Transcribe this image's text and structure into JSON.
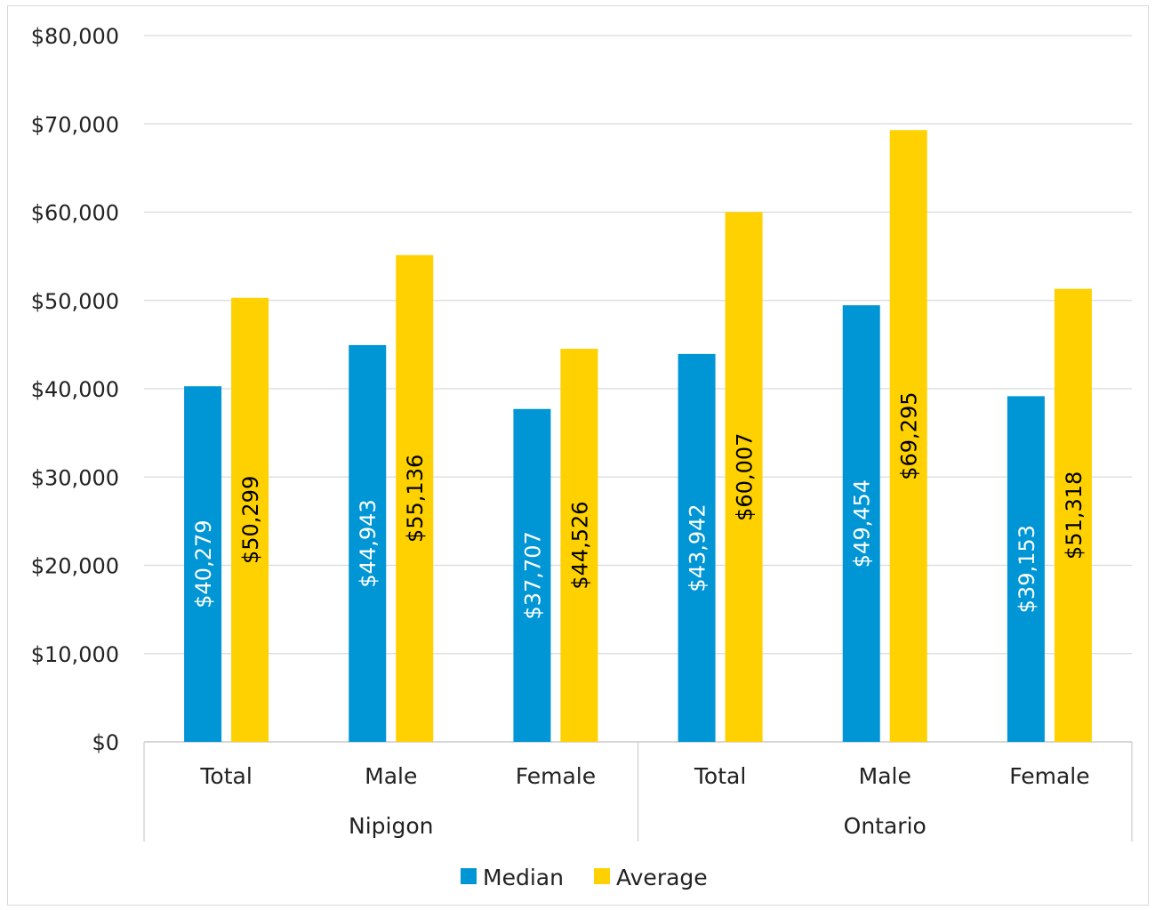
{
  "chart_data": {
    "type": "bar",
    "title": "",
    "xlabel": "",
    "ylabel": "",
    "ylim": [
      0,
      80000
    ],
    "y_tick_step": 10000,
    "y_ticks": [
      "$0",
      "$10,000",
      "$20,000",
      "$30,000",
      "$40,000",
      "$50,000",
      "$60,000",
      "$70,000",
      "$80,000"
    ],
    "grid": true,
    "legend_position": "bottom",
    "groups": [
      {
        "label": "Nipigon",
        "categories": [
          "Total",
          "Male",
          "Female"
        ]
      },
      {
        "label": "Ontario",
        "categories": [
          "Total",
          "Male",
          "Female"
        ]
      }
    ],
    "categories": [
      "Total",
      "Male",
      "Female",
      "Total",
      "Male",
      "Female"
    ],
    "series": [
      {
        "name": "Median",
        "color": "#0096d6",
        "label_color": "#ffffff",
        "values": [
          40279,
          44943,
          37707,
          43942,
          49454,
          39153
        ],
        "labels": [
          "$40,279",
          "$44,943",
          "$37,707",
          "$43,942",
          "$49,454",
          "$39,153"
        ]
      },
      {
        "name": "Average",
        "color": "#ffd100",
        "label_color": "#000000",
        "values": [
          50299,
          55136,
          44526,
          60007,
          69295,
          51318
        ],
        "labels": [
          "$50,299",
          "$55,136",
          "$44,526",
          "$60,007",
          "$69,295",
          "$51,318"
        ]
      }
    ]
  }
}
